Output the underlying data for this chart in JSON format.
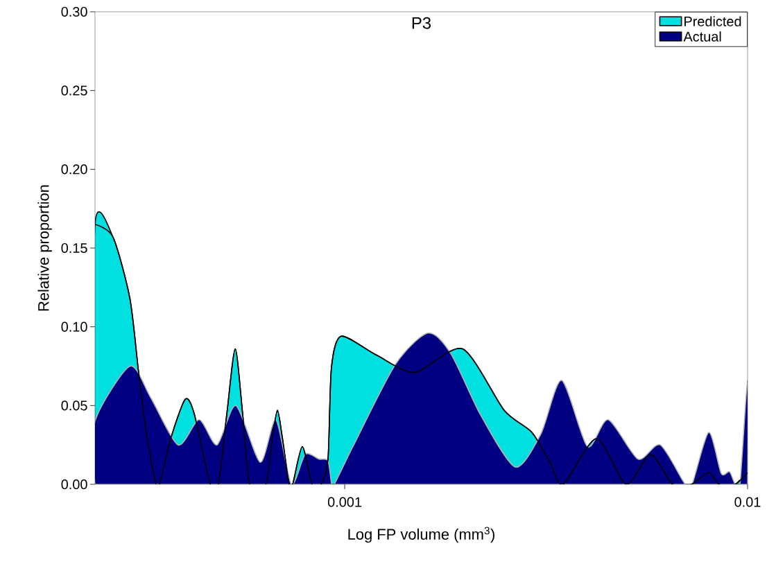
{
  "chart_data": {
    "type": "area",
    "title": "P3",
    "xlabel": "Log FP volume (mm$^{3}$)",
    "ylabel": "Relative proportion",
    "log": "x",
    "xlim": [
      0.00024,
      0.01
    ],
    "ylim": [
      0,
      0.3
    ],
    "xticks": [
      0.001,
      0.01
    ],
    "yticks": [
      {
        "value": 0,
        "label": "0.00"
      },
      {
        "value": 0.05,
        "label": "0.05"
      },
      {
        "value": 0.1,
        "label": "0.10"
      },
      {
        "value": 0.15,
        "label": "0.15"
      },
      {
        "value": 0.2,
        "label": "0.20"
      },
      {
        "value": 0.25,
        "label": "0.25"
      },
      {
        "value": 0.3,
        "label": "0.30"
      }
    ],
    "grid": false,
    "legend": "top right",
    "series": [
      {
        "name": "Predicted",
        "color": "#00e0e0",
        "x": [
          0.00024,
          0.000266,
          0.000293,
          0.000308,
          0.000323,
          0.00034,
          0.000347,
          0.000371,
          0.000402,
          0.000423,
          0.000464,
          0.000486,
          0.00051,
          0.000535,
          0.000558,
          0.000581,
          0.000637,
          0.000662,
          0.000681,
          0.0007,
          0.000728,
          0.000743,
          0.000785,
          0.00083,
          0.000874,
          0.000909,
          0.000927,
          0.00098,
          0.0012,
          0.001492,
          0.001962,
          0.002489,
          0.002915,
          0.003232,
          0.003485,
          0.004216,
          0.004997,
          0.005741,
          0.006518,
          0.007255,
          0.00801,
          0.0085,
          0.009311,
          0.01
        ],
        "values": [
          0.165,
          0.157,
          0.118,
          0.071,
          0.03,
          0,
          0,
          0.03,
          0.054,
          0.045,
          0,
          0,
          0.045,
          0.086,
          0.045,
          0,
          0,
          0.03,
          0.047,
          0.03,
          0,
          0,
          0.024,
          0,
          0,
          0.016,
          0.074,
          0.094,
          0.082,
          0.071,
          0.086,
          0.047,
          0.033,
          0.014,
          0,
          0.029,
          0,
          0.019,
          0,
          0,
          0.0075,
          0,
          0,
          0.0075
        ]
      },
      {
        "name": "Actual",
        "color": "#000080",
        "x": [
          0.00024,
          0.000293,
          0.00033,
          0.000386,
          0.000435,
          0.000482,
          0.000537,
          0.000617,
          0.000675,
          0.000737,
          0.000798,
          0.000864,
          0.000909,
          0.000927,
          0.000942,
          0.001053,
          0.001335,
          0.001609,
          0.001834,
          0.002175,
          0.002651,
          0.003069,
          0.003457,
          0.004004,
          0.004508,
          0.005346,
          0.00607,
          0.007,
          0.007284,
          0.00801,
          0.0086,
          0.00902,
          0.009311,
          0.009574,
          0.01
        ],
        "values": [
          0.04,
          0.075,
          0.055,
          0.025,
          0.041,
          0.025,
          0.05,
          0.014,
          0.041,
          0,
          0.019,
          0.016,
          0.015,
          0.001,
          0,
          0.025,
          0.076,
          0.096,
          0.083,
          0.044,
          0.011,
          0.032,
          0.066,
          0.024,
          0.041,
          0.016,
          0.025,
          0,
          0,
          0.033,
          0.007,
          0.008,
          0,
          0,
          0.066
        ]
      }
    ]
  }
}
